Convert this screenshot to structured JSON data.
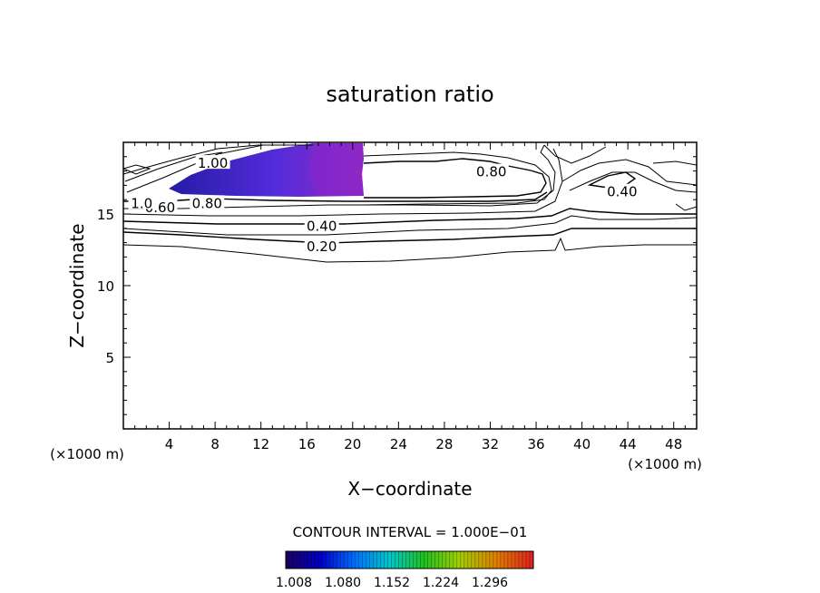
{
  "chart_data": {
    "type": "contour",
    "title": "saturation ratio",
    "xlabel": "X−coordinate",
    "ylabel": "Z−coordinate",
    "x_unit_left": "(×1000 m)",
    "x_unit_right": "(×1000 m)",
    "xlim": [
      0,
      50
    ],
    "ylim": [
      0,
      20
    ],
    "xticks": [
      4,
      8,
      12,
      16,
      20,
      24,
      28,
      32,
      36,
      40,
      44,
      48
    ],
    "yticks": [
      5,
      10,
      15
    ],
    "contour_interval_text": "CONTOUR INTERVAL = 1.000E−01",
    "contour_labels": [
      {
        "text": "1.00",
        "x": 7.8,
        "y": 18.6
      },
      {
        "text": "0.80",
        "x": 32.1,
        "y": 18.0
      },
      {
        "text": "0.80",
        "x": 7.3,
        "y": 15.8
      },
      {
        "text": "0.60",
        "x": 3.2,
        "y": 15.5
      },
      {
        "text": "1.0",
        "x": 1.6,
        "y": 15.8
      },
      {
        "text": "0.40",
        "x": 17.3,
        "y": 14.2
      },
      {
        "text": "0.20",
        "x": 17.3,
        "y": 12.8
      },
      {
        "text": "0.40",
        "x": 43.5,
        "y": 16.6
      }
    ],
    "supersaturated_region": {
      "x_range": [
        4,
        21
      ],
      "z_range": [
        16.0,
        19.5
      ],
      "max_near_x": 20
    },
    "colorbar": {
      "ticks": [
        "1.008",
        "1.080",
        "1.152",
        "1.224",
        "1.296"
      ],
      "colors": [
        "#1a0060",
        "#0000c8",
        "#0070ff",
        "#00c8c8",
        "#20c020",
        "#a0d000",
        "#e08000",
        "#e02020"
      ]
    },
    "fill_colors": {
      "low": "#1810a0",
      "mid": "#4a20d8",
      "high": "#9020c0"
    }
  }
}
